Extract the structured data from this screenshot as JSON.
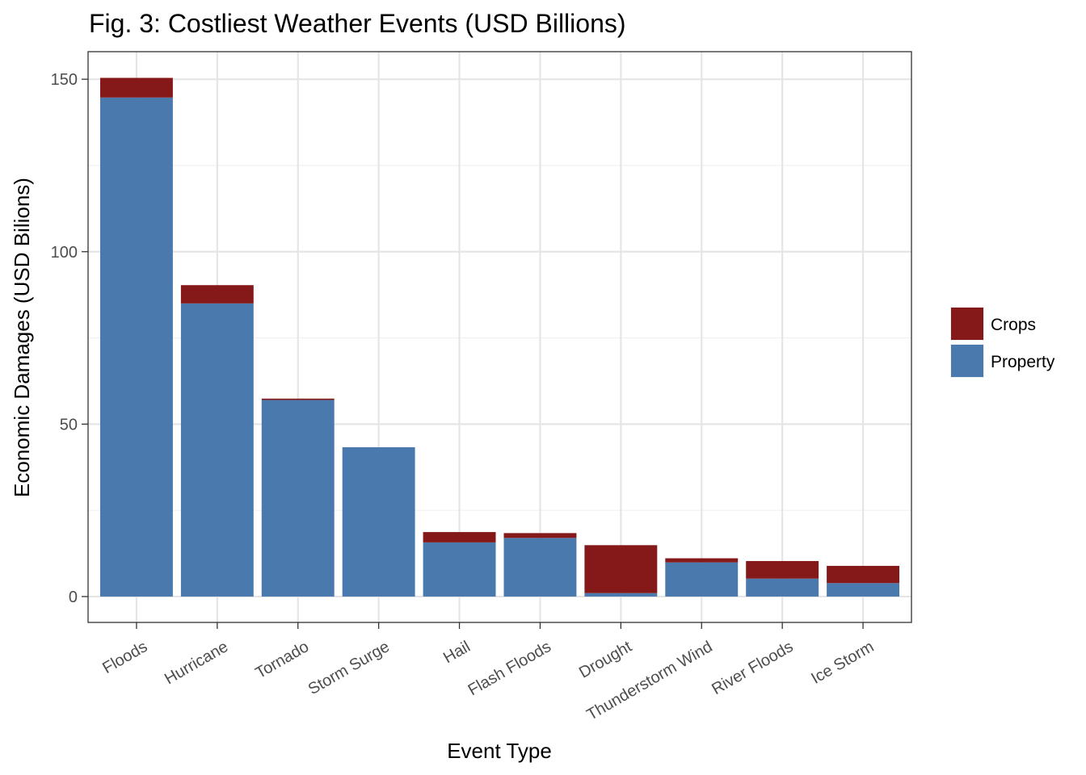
{
  "chart_data": {
    "type": "bar",
    "stacked": true,
    "title": "Fig. 3: Costliest Weather Events (USD Billions)",
    "xlabel": "Event Type",
    "ylabel": "Economic Damages (USD Bilions)",
    "categories": [
      "Floods",
      "Hurricane",
      "Tornado",
      "Storm Surge",
      "Hail",
      "Flash Floods",
      "Drought",
      "Thunderstorm Wind",
      "River Floods",
      "Ice Storm"
    ],
    "series": [
      {
        "name": "Property",
        "color": "#4a7aad",
        "values": [
          144.7,
          85.0,
          57.0,
          43.3,
          15.7,
          17.0,
          1.0,
          9.9,
          5.2,
          3.9
        ]
      },
      {
        "name": "Crops",
        "color": "#85191a",
        "values": [
          5.7,
          5.3,
          0.4,
          0.0,
          3.0,
          1.4,
          13.9,
          1.2,
          5.1,
          5.0
        ]
      }
    ],
    "ylim": [
      -7.5,
      158
    ],
    "yticks": [
      0,
      50,
      100,
      150
    ],
    "grid": true,
    "legend": "right",
    "legend_order": [
      "Crops",
      "Property"
    ]
  }
}
